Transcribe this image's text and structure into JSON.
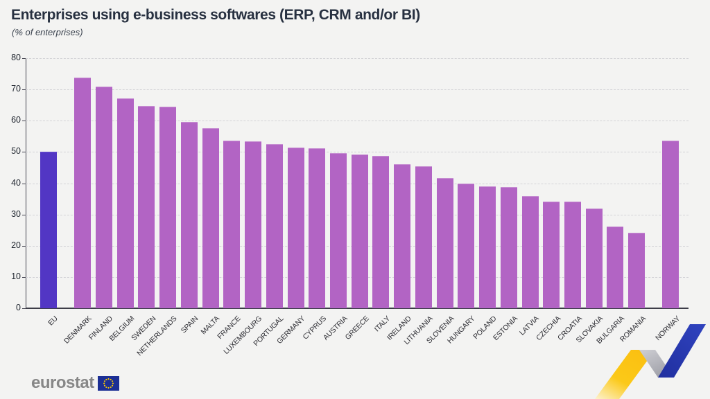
{
  "header": {
    "title": "Enterprises using e-business softwares (ERP, CRM and/or BI)",
    "subtitle": "(% of enterprises)"
  },
  "chart_data": {
    "type": "bar",
    "title": "Enterprises using e-business softwares (ERP, CRM and/or BI)",
    "ylabel": "% of enterprises",
    "ylim": [
      0,
      80
    ],
    "ytick_step": 10,
    "grid": true,
    "legend": "none",
    "bar_color": "#b264c4",
    "highlight_color": "#5236c4",
    "bars": [
      {
        "label": "EU",
        "value": 50.0,
        "highlight": true
      },
      {
        "label": "DENMARK",
        "value": 73.7,
        "gap_before": true
      },
      {
        "label": "FINLAND",
        "value": 70.9
      },
      {
        "label": "BELGIUM",
        "value": 67.2
      },
      {
        "label": "SWEDEN",
        "value": 64.7
      },
      {
        "label": "NETHERLANDS",
        "value": 64.4
      },
      {
        "label": "SPAIN",
        "value": 59.7
      },
      {
        "label": "MALTA",
        "value": 57.6
      },
      {
        "label": "FRANCE",
        "value": 53.7
      },
      {
        "label": "LUXEMBOURG",
        "value": 53.5
      },
      {
        "label": "PORTUGAL",
        "value": 52.5
      },
      {
        "label": "GERMANY",
        "value": 51.4
      },
      {
        "label": "CYPRUS",
        "value": 51.2
      },
      {
        "label": "AUSTRIA",
        "value": 49.6
      },
      {
        "label": "GREECE",
        "value": 49.2
      },
      {
        "label": "ITALY",
        "value": 48.8
      },
      {
        "label": "IRELAND",
        "value": 46.1
      },
      {
        "label": "LITHUANIA",
        "value": 45.4
      },
      {
        "label": "SLOVENIA",
        "value": 41.6
      },
      {
        "label": "HUNGARY",
        "value": 39.9
      },
      {
        "label": "POLAND",
        "value": 39.1
      },
      {
        "label": "ESTONIA",
        "value": 38.7
      },
      {
        "label": "LATVIA",
        "value": 35.9
      },
      {
        "label": "CZECHIA",
        "value": 34.2
      },
      {
        "label": "CROATIA",
        "value": 34.2
      },
      {
        "label": "SLOVAKIA",
        "value": 32.0
      },
      {
        "label": "BULGARIA",
        "value": 26.1
      },
      {
        "label": "ROMANIA",
        "value": 24.2
      },
      {
        "label": "NORWAY",
        "value": 53.6,
        "gap_before": true
      }
    ]
  },
  "footer": {
    "brand": "eurostat"
  },
  "colors": {
    "background": "#f3f3f2",
    "title_text": "#273040",
    "bar": "#b264c4",
    "eu_bar": "#5236c4",
    "flag_blue": "#1c2f94",
    "flag_stars": "#ffcc00",
    "ribbon_yellow": "#fbc615",
    "ribbon_gray": "#b3b3b9",
    "ribbon_blue": "#2b3cb2"
  }
}
